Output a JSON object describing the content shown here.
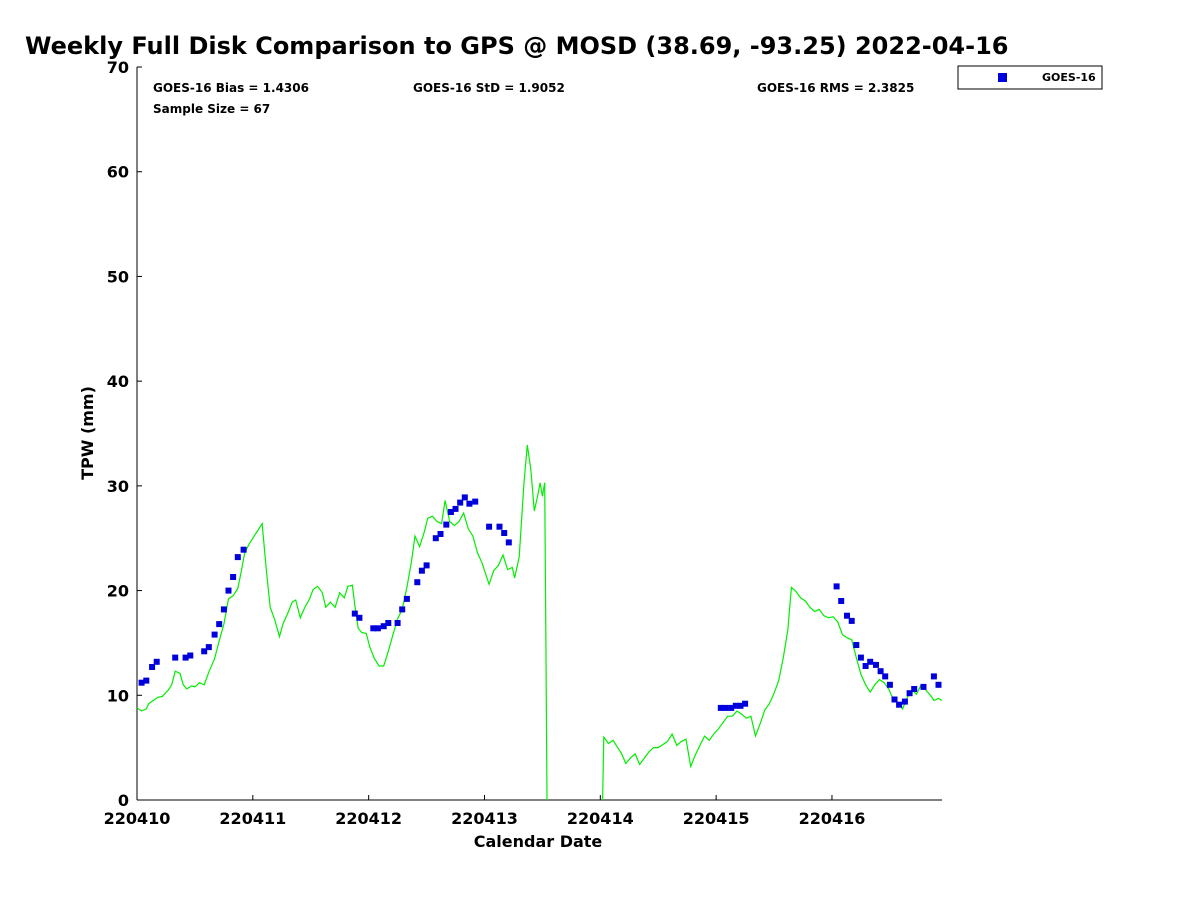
{
  "chart_data": {
    "type": "scatter",
    "title": "Weekly Full Disk Comparison to GPS @ MOSD (38.69, -93.25) 2022-04-16",
    "xlabel": "Calendar Date",
    "ylabel": "TPW (mm)",
    "xlim": [
      0,
      6.95
    ],
    "ylim": [
      0,
      70
    ],
    "x_ticks": [
      0,
      1,
      2,
      3,
      4,
      5,
      6
    ],
    "x_tick_labels": [
      "220410",
      "220411",
      "220412",
      "220413",
      "220414",
      "220415",
      "220416"
    ],
    "y_ticks": [
      0,
      10,
      20,
      30,
      40,
      50,
      60,
      70
    ],
    "y_tick_labels": [
      "0",
      "10",
      "20",
      "30",
      "40",
      "50",
      "60",
      "70"
    ],
    "grid": false,
    "legend_position": "outside-top-right",
    "stats": {
      "bias": "GOES-16 Bias = 1.4306",
      "std": "GOES-16 StD = 1.9052",
      "rms": "GOES-16 RMS = 2.3825",
      "sample": "Sample Size = 67"
    },
    "legend": [
      {
        "name": "GOES-16",
        "marker": "square",
        "color": "#0000dd"
      }
    ],
    "series": [
      {
        "name": "GOES-16",
        "kind": "scatter",
        "marker": "square",
        "color": "#0000dd",
        "points": [
          [
            0.04,
            11.2
          ],
          [
            0.08,
            11.4
          ],
          [
            0.13,
            12.7
          ],
          [
            0.17,
            13.2
          ],
          [
            0.33,
            13.6
          ],
          [
            0.42,
            13.6
          ],
          [
            0.46,
            13.8
          ],
          [
            0.58,
            14.2
          ],
          [
            0.62,
            14.6
          ],
          [
            0.67,
            15.8
          ],
          [
            0.71,
            16.8
          ],
          [
            0.75,
            18.2
          ],
          [
            0.79,
            20.0
          ],
          [
            0.83,
            21.3
          ],
          [
            0.87,
            23.2
          ],
          [
            0.92,
            23.9
          ],
          [
            1.88,
            17.8
          ],
          [
            1.92,
            17.4
          ],
          [
            2.04,
            16.4
          ],
          [
            2.08,
            16.4
          ],
          [
            2.13,
            16.6
          ],
          [
            2.17,
            16.9
          ],
          [
            2.25,
            16.9
          ],
          [
            2.29,
            18.2
          ],
          [
            2.33,
            19.2
          ],
          [
            2.42,
            20.8
          ],
          [
            2.46,
            21.9
          ],
          [
            2.5,
            22.4
          ],
          [
            2.58,
            25.0
          ],
          [
            2.62,
            25.4
          ],
          [
            2.67,
            26.3
          ],
          [
            2.71,
            27.5
          ],
          [
            2.75,
            27.8
          ],
          [
            2.79,
            28.4
          ],
          [
            2.83,
            28.9
          ],
          [
            2.87,
            28.3
          ],
          [
            2.92,
            28.5
          ],
          [
            3.04,
            26.1
          ],
          [
            3.13,
            26.1
          ],
          [
            3.17,
            25.5
          ],
          [
            3.21,
            24.6
          ],
          [
            5.04,
            8.8
          ],
          [
            5.08,
            8.8
          ],
          [
            5.13,
            8.8
          ],
          [
            5.17,
            9.0
          ],
          [
            5.21,
            9.0
          ],
          [
            5.25,
            9.2
          ],
          [
            6.04,
            20.4
          ],
          [
            6.08,
            19.0
          ],
          [
            6.13,
            17.6
          ],
          [
            6.17,
            17.1
          ],
          [
            6.21,
            14.8
          ],
          [
            6.25,
            13.6
          ],
          [
            6.29,
            12.8
          ],
          [
            6.33,
            13.2
          ],
          [
            6.38,
            12.9
          ],
          [
            6.42,
            12.3
          ],
          [
            6.46,
            11.8
          ],
          [
            6.5,
            11.0
          ],
          [
            6.54,
            9.6
          ],
          [
            6.58,
            9.1
          ],
          [
            6.63,
            9.4
          ],
          [
            6.67,
            10.2
          ],
          [
            6.71,
            10.6
          ],
          [
            6.79,
            10.8
          ],
          [
            6.88,
            11.8
          ],
          [
            6.92,
            11.0
          ]
        ]
      },
      {
        "name": "GPS",
        "kind": "line",
        "color": "#00ee00",
        "segments": [
          [
            [
              0.0,
              8.8
            ],
            [
              0.04,
              8.5
            ],
            [
              0.08,
              8.7
            ],
            [
              0.1,
              9.2
            ],
            [
              0.14,
              9.5
            ],
            [
              0.18,
              9.8
            ],
            [
              0.22,
              9.9
            ],
            [
              0.27,
              10.5
            ],
            [
              0.3,
              11.0
            ],
            [
              0.33,
              12.3
            ],
            [
              0.37,
              12.1
            ],
            [
              0.4,
              11.0
            ],
            [
              0.43,
              10.6
            ],
            [
              0.47,
              10.9
            ],
            [
              0.5,
              10.8
            ],
            [
              0.54,
              11.2
            ],
            [
              0.58,
              11.0
            ],
            [
              0.62,
              12.2
            ],
            [
              0.67,
              13.5
            ],
            [
              0.71,
              15.2
            ],
            [
              0.75,
              16.8
            ],
            [
              0.79,
              19.2
            ],
            [
              0.83,
              19.5
            ],
            [
              0.87,
              20.2
            ],
            [
              0.9,
              21.8
            ],
            [
              0.93,
              23.6
            ],
            [
              0.97,
              24.5
            ],
            [
              1.0,
              25.0
            ],
            [
              1.04,
              25.7
            ],
            [
              1.08,
              26.4
            ],
            [
              1.12,
              21.6
            ],
            [
              1.15,
              18.4
            ],
            [
              1.19,
              17.2
            ],
            [
              1.23,
              15.6
            ],
            [
              1.26,
              16.8
            ],
            [
              1.3,
              17.8
            ],
            [
              1.34,
              18.9
            ],
            [
              1.37,
              19.1
            ],
            [
              1.41,
              17.4
            ],
            [
              1.45,
              18.4
            ],
            [
              1.49,
              19.2
            ],
            [
              1.52,
              20.1
            ],
            [
              1.56,
              20.4
            ],
            [
              1.6,
              19.8
            ],
            [
              1.63,
              18.4
            ],
            [
              1.67,
              18.9
            ],
            [
              1.71,
              18.4
            ],
            [
              1.75,
              19.8
            ],
            [
              1.79,
              19.3
            ],
            [
              1.82,
              20.4
            ],
            [
              1.86,
              20.5
            ],
            [
              1.88,
              18.6
            ],
            [
              1.91,
              16.4
            ],
            [
              1.94,
              16.0
            ],
            [
              1.98,
              15.9
            ],
            [
              2.01,
              14.6
            ],
            [
              2.05,
              13.5
            ],
            [
              2.09,
              12.8
            ],
            [
              2.13,
              12.8
            ],
            [
              2.17,
              14.2
            ],
            [
              2.21,
              15.8
            ],
            [
              2.25,
              17.3
            ],
            [
              2.29,
              18.2
            ],
            [
              2.33,
              20.3
            ],
            [
              2.37,
              22.8
            ],
            [
              2.4,
              25.2
            ],
            [
              2.44,
              24.2
            ],
            [
              2.48,
              25.6
            ],
            [
              2.51,
              26.9
            ],
            [
              2.55,
              27.1
            ],
            [
              2.59,
              26.6
            ],
            [
              2.63,
              26.4
            ],
            [
              2.66,
              28.6
            ],
            [
              2.7,
              26.6
            ],
            [
              2.74,
              26.2
            ],
            [
              2.78,
              26.6
            ],
            [
              2.82,
              27.4
            ],
            [
              2.86,
              25.9
            ],
            [
              2.9,
              25.2
            ],
            [
              2.94,
              23.6
            ],
            [
              2.98,
              22.6
            ],
            [
              3.01,
              21.6
            ],
            [
              3.04,
              20.6
            ],
            [
              3.08,
              21.9
            ],
            [
              3.12,
              22.4
            ],
            [
              3.16,
              23.4
            ],
            [
              3.2,
              22.0
            ],
            [
              3.24,
              22.2
            ],
            [
              3.26,
              21.2
            ],
            [
              3.3,
              23.2
            ],
            [
              3.34,
              30.2
            ],
            [
              3.37,
              33.9
            ],
            [
              3.4,
              31.6
            ],
            [
              3.43,
              27.6
            ],
            [
              3.46,
              29.1
            ],
            [
              3.48,
              30.3
            ],
            [
              3.5,
              29.0
            ],
            [
              3.52,
              30.3
            ],
            [
              3.53,
              15.0
            ],
            [
              3.54,
              0
            ]
          ],
          [
            [
              4.02,
              0
            ],
            [
              4.03,
              6.0
            ],
            [
              4.07,
              5.4
            ],
            [
              4.11,
              5.7
            ],
            [
              4.15,
              5.0
            ],
            [
              4.18,
              4.5
            ],
            [
              4.22,
              3.5
            ],
            [
              4.26,
              4.0
            ],
            [
              4.3,
              4.4
            ],
            [
              4.34,
              3.4
            ],
            [
              4.38,
              4.0
            ],
            [
              4.42,
              4.6
            ],
            [
              4.46,
              5.0
            ],
            [
              4.5,
              5.0
            ],
            [
              4.54,
              5.3
            ],
            [
              4.58,
              5.6
            ],
            [
              4.62,
              6.3
            ],
            [
              4.66,
              5.2
            ],
            [
              4.7,
              5.6
            ],
            [
              4.74,
              5.8
            ],
            [
              4.78,
              3.2
            ],
            [
              4.82,
              4.3
            ],
            [
              4.86,
              5.2
            ],
            [
              4.9,
              6.1
            ],
            [
              4.94,
              5.7
            ],
            [
              4.98,
              6.3
            ],
            [
              5.02,
              6.8
            ],
            [
              5.06,
              7.4
            ],
            [
              5.1,
              8.0
            ],
            [
              5.14,
              8.0
            ],
            [
              5.18,
              8.5
            ],
            [
              5.22,
              8.2
            ],
            [
              5.26,
              7.8
            ],
            [
              5.3,
              8.0
            ],
            [
              5.34,
              6.1
            ],
            [
              5.38,
              7.3
            ],
            [
              5.42,
              8.6
            ],
            [
              5.46,
              9.2
            ],
            [
              5.5,
              10.2
            ],
            [
              5.54,
              11.4
            ],
            [
              5.58,
              13.6
            ],
            [
              5.62,
              16.3
            ],
            [
              5.65,
              20.3
            ],
            [
              5.69,
              19.9
            ],
            [
              5.73,
              19.3
            ],
            [
              5.77,
              19.0
            ],
            [
              5.81,
              18.4
            ],
            [
              5.85,
              18.0
            ],
            [
              5.89,
              18.2
            ],
            [
              5.93,
              17.6
            ],
            [
              5.97,
              17.4
            ],
            [
              6.01,
              17.5
            ],
            [
              6.05,
              17.0
            ],
            [
              6.09,
              15.8
            ],
            [
              6.13,
              15.5
            ],
            [
              6.17,
              15.3
            ],
            [
              6.21,
              13.6
            ],
            [
              6.25,
              12.0
            ],
            [
              6.29,
              11.0
            ],
            [
              6.33,
              10.3
            ],
            [
              6.37,
              11.0
            ],
            [
              6.41,
              11.5
            ],
            [
              6.45,
              11.2
            ],
            [
              6.49,
              10.6
            ],
            [
              6.53,
              9.6
            ],
            [
              6.57,
              9.3
            ],
            [
              6.61,
              8.7
            ],
            [
              6.65,
              9.8
            ],
            [
              6.69,
              10.5
            ],
            [
              6.73,
              10.1
            ],
            [
              6.77,
              11.0
            ],
            [
              6.81,
              10.5
            ],
            [
              6.85,
              10.0
            ],
            [
              6.88,
              9.5
            ],
            [
              6.92,
              9.7
            ],
            [
              6.95,
              9.5
            ]
          ]
        ]
      }
    ]
  }
}
